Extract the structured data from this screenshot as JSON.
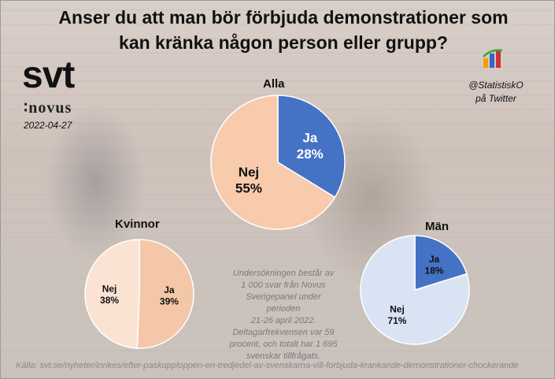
{
  "title_line1": "Anser du att man bör förbjuda demonstrationer som",
  "title_line2": "kan kränka någon person eller grupp?",
  "brand": "svt",
  "brand_sub": "novus",
  "date": "2022-04-27",
  "handle_line1": "@StatistiskO",
  "handle_line2": "på Twitter",
  "note_lines": [
    "Undersökningen består av",
    "1 000 svar från Novus",
    "Sverigepanel under perioden",
    "21-26 april 2022.",
    "Deltagarfrekvensen  var 59",
    "procent, och totalt har 1 695",
    "svenskar tillfrågats."
  ],
  "source": "Källa: svt.se/nyheter/inrikes/efter-paskupploppen-en-tredjedel-av-svenskarna-vill-forbjuda-krankande-demonstrationer-chockerande",
  "colors": {
    "ja_alla": "#4472c4",
    "nej_alla": "#f8cbad",
    "ja_kvinnor": "#f4c7a9",
    "nej_kvinnor": "#fbe3d4",
    "ja_man": "#4472c4",
    "nej_man": "#dae3f3"
  },
  "chart_data": [
    {
      "type": "pie",
      "title": "Alla",
      "categories": [
        "Ja",
        "Nej"
      ],
      "values": [
        28,
        55
      ],
      "value_labels": [
        "28%",
        "55%"
      ]
    },
    {
      "type": "pie",
      "title": "Kvinnor",
      "categories": [
        "Ja",
        "Nej"
      ],
      "values": [
        39,
        38
      ],
      "value_labels": [
        "39%",
        "38%"
      ]
    },
    {
      "type": "pie",
      "title": "Män",
      "categories": [
        "Ja",
        "Nej"
      ],
      "values": [
        18,
        71
      ],
      "value_labels": [
        "18%",
        "71%"
      ]
    }
  ]
}
